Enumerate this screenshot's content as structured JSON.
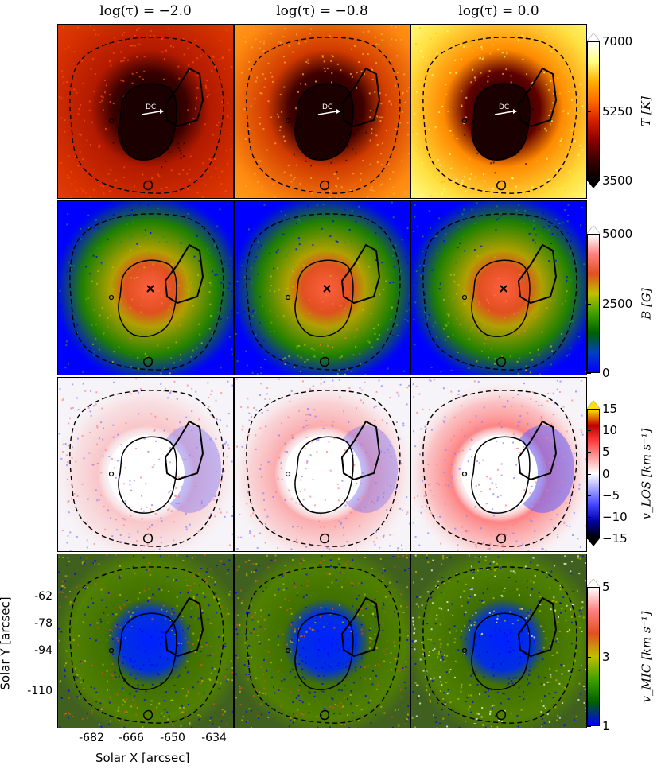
{
  "columns": [
    {
      "title": "log(τ) = −2.0"
    },
    {
      "title": "log(τ) = −0.8"
    },
    {
      "title": "log(τ) = 0.0"
    }
  ],
  "rows": [
    {
      "quantity": "T",
      "label": "T [K]",
      "ticks": [
        "7000",
        "5250",
        "3500"
      ],
      "colormap": "hot",
      "colors": [
        "#000000",
        "#3a0000",
        "#8a0000",
        "#d42000",
        "#ff6a00",
        "#ffb000",
        "#ffff80",
        "#ffffff"
      ]
    },
    {
      "quantity": "B",
      "label": "B [G]",
      "ticks": [
        "5000",
        "2500",
        "0"
      ],
      "colormap": "blue-green-red-white",
      "colors": [
        "#0000ff",
        "#0040c0",
        "#006000",
        "#40a000",
        "#c0c000",
        "#e05020",
        "#ff8080",
        "#ffffff"
      ]
    },
    {
      "quantity": "vLOS",
      "label": "v_LOS  [km s⁻¹]",
      "ticks": [
        "15",
        "10",
        "5",
        "0",
        "−5",
        "−10",
        "−15"
      ],
      "colormap": "diverging",
      "colors": [
        "#000000",
        "#0000a0",
        "#4040ff",
        "#a0a0ff",
        "#ffffff",
        "#ffa0a0",
        "#ff4040",
        "#c00000",
        "#ffe000"
      ]
    },
    {
      "quantity": "vMIC",
      "label": "v_MIC  [km s⁻¹]",
      "ticks": [
        "5",
        "3",
        "1"
      ],
      "colormap": "blue-green-red-white",
      "colors": [
        "#0000ff",
        "#006000",
        "#40a000",
        "#c0c000",
        "#e05020",
        "#ff8080",
        "#ffffff"
      ]
    }
  ],
  "annotation": "DC",
  "y_axis": {
    "label": "Solar Y [arcsec]",
    "ticks": [
      "-62",
      "-78",
      "-94",
      "-110"
    ]
  },
  "x_axis": {
    "label": "Solar X [arcsec]",
    "ticks": [
      "-682",
      "-666",
      "-650",
      "-634"
    ]
  }
}
